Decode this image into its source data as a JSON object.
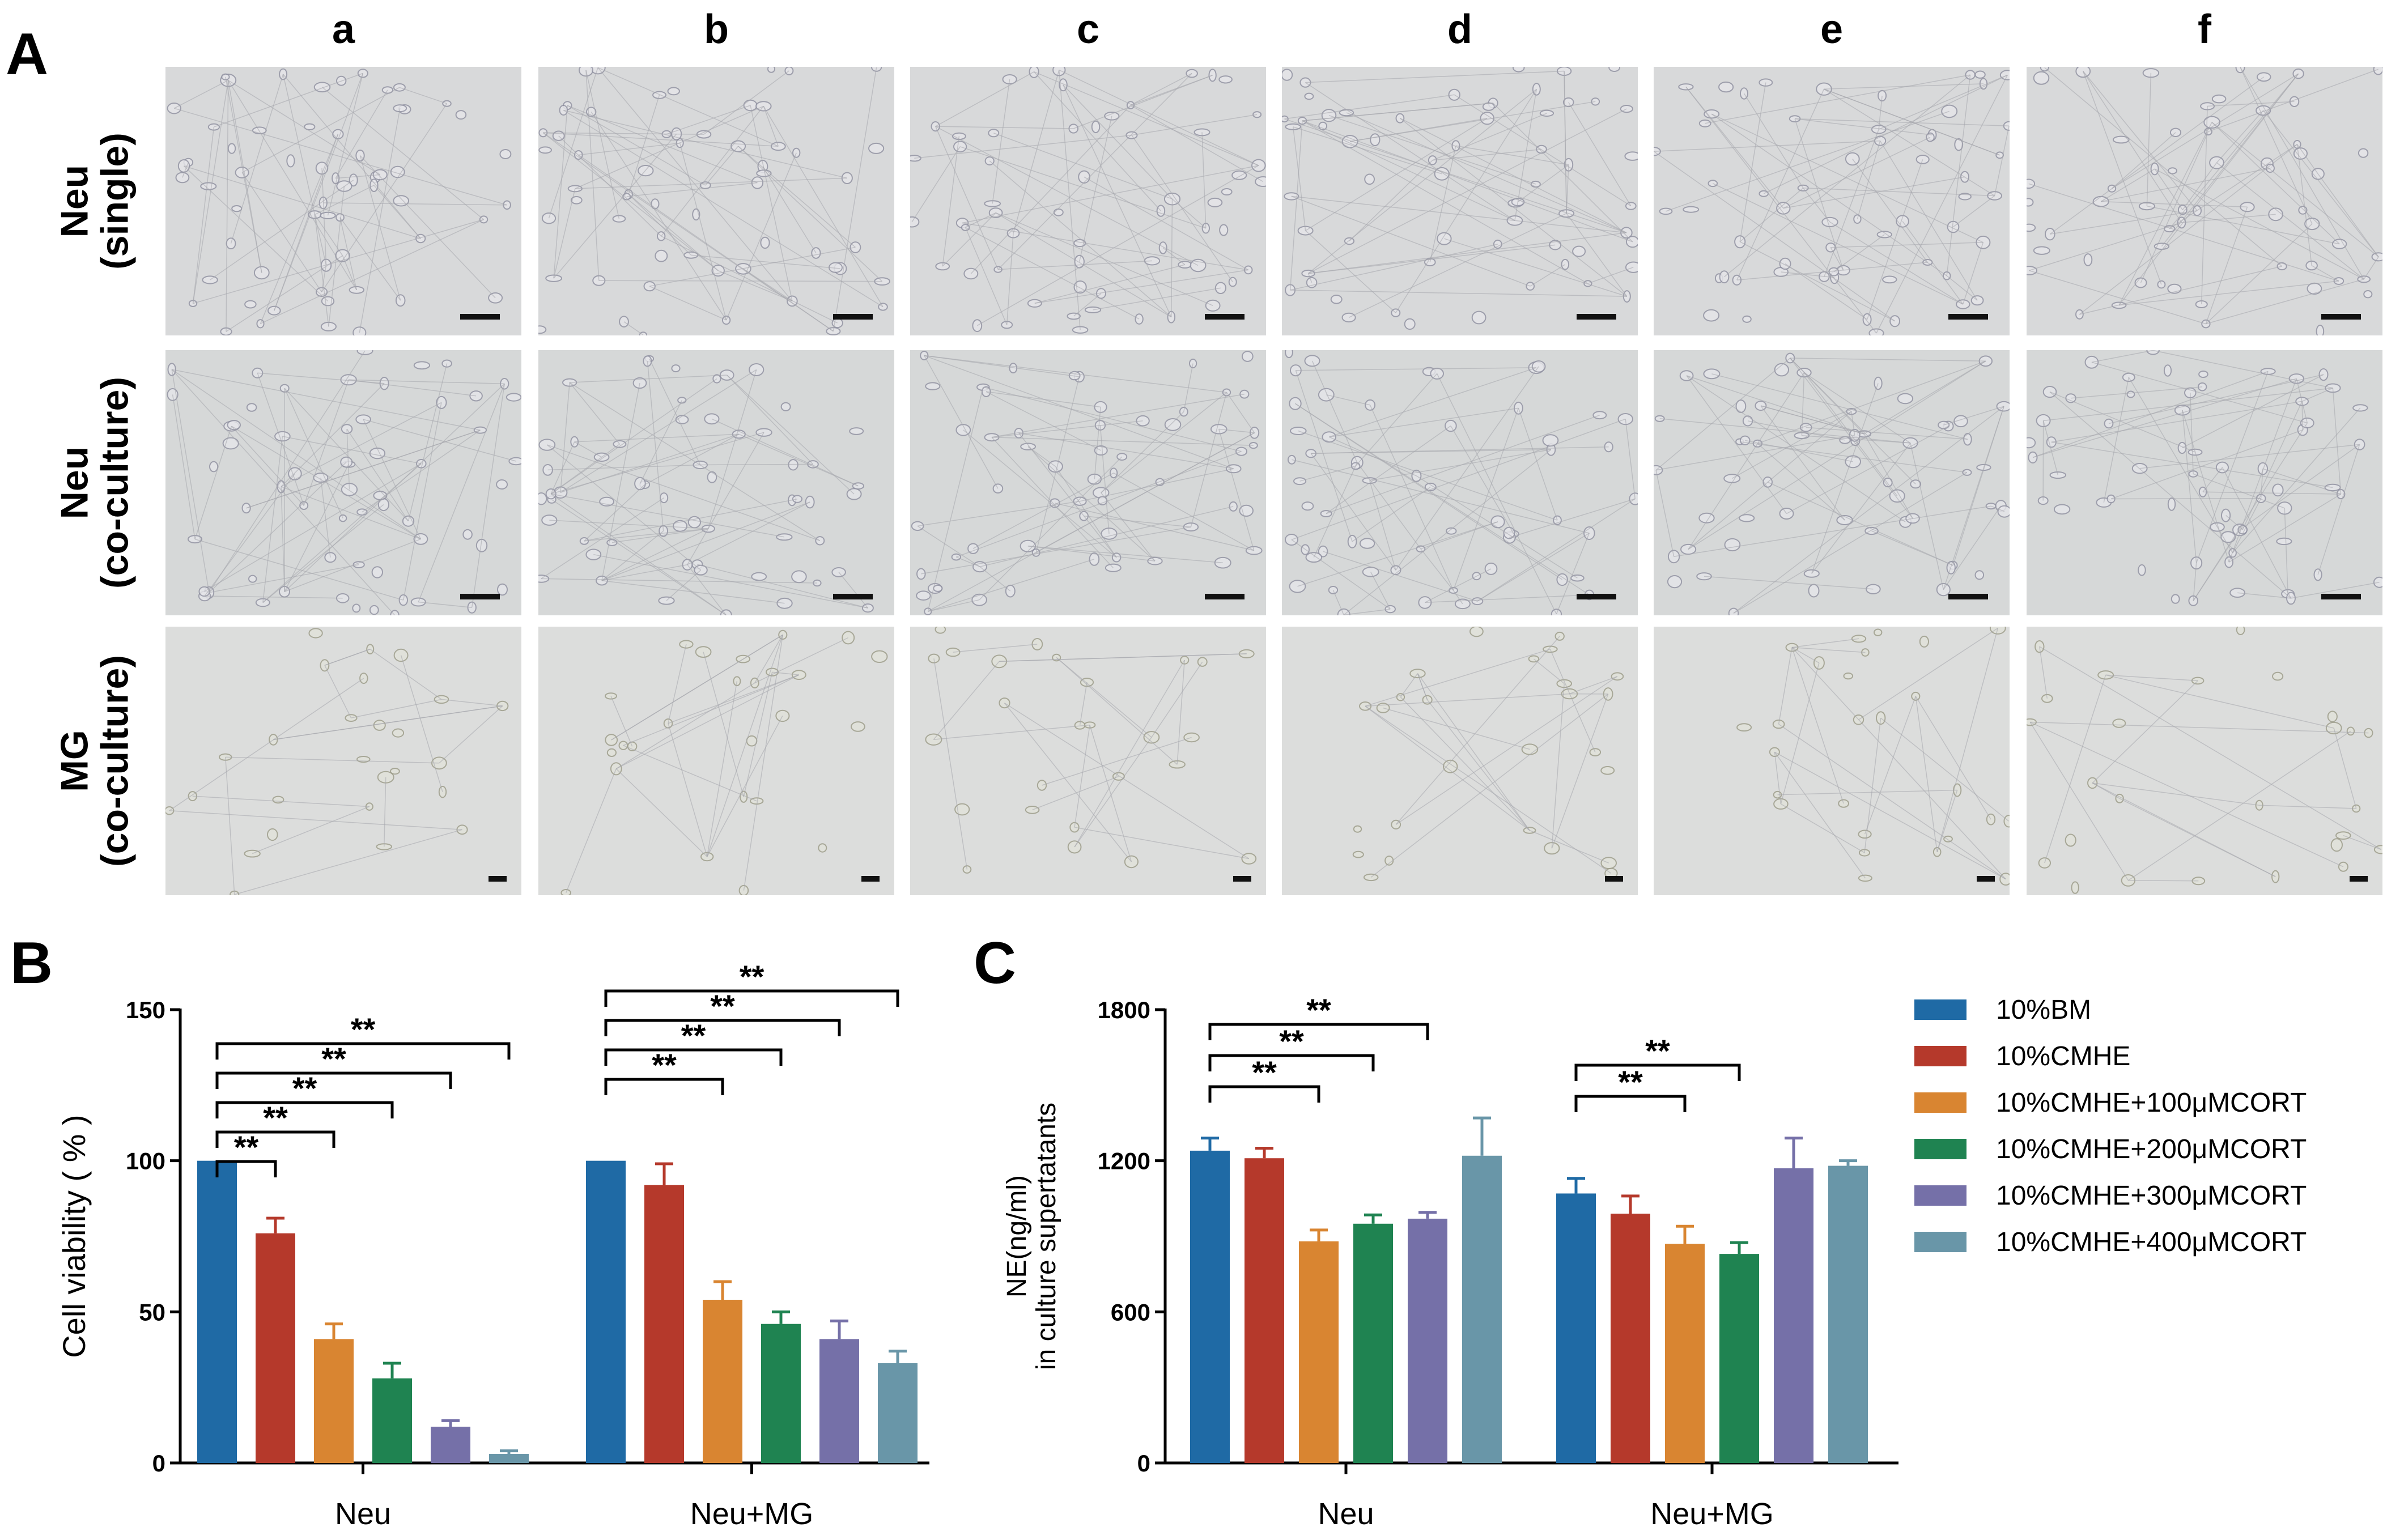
{
  "panel_a": {
    "letter": "A",
    "columns": [
      "a",
      "b",
      "c",
      "d",
      "e",
      "f"
    ],
    "rows": [
      {
        "line1": "Neu",
        "line2": "(single)"
      },
      {
        "line1": "Neu",
        "line2": "(co-culture)"
      },
      {
        "line1": "MG",
        "line2": "(co-culture)"
      }
    ]
  },
  "panel_b": {
    "letter": "B"
  },
  "panel_c": {
    "letter": "C"
  },
  "legend": {
    "items": [
      {
        "label": "10%BM",
        "color": "#1f6aa5"
      },
      {
        "label": "10%CMHE",
        "color": "#b5392b"
      },
      {
        "label": "10%CMHE+100μMCORT",
        "color": "#d98531"
      },
      {
        "label": "10%CMHE+200μMCORT",
        "color": "#1f8351"
      },
      {
        "label": "10%CMHE+300μMCORT",
        "color": "#7570a8"
      },
      {
        "label": "10%CMHE+400μMCORT",
        "color": "#6996a8"
      }
    ]
  },
  "chart_data": [
    {
      "type": "bar",
      "panel": "B",
      "ylabel": "Cell viability ( % )",
      "xlabel": "",
      "ylim": [
        0,
        150
      ],
      "yticks": [
        0,
        50,
        100,
        150
      ],
      "categories": [
        "Neu",
        "Neu+MG"
      ],
      "series": [
        {
          "name": "10%BM",
          "values": [
            100,
            100
          ],
          "errors": [
            0,
            0
          ]
        },
        {
          "name": "10%CMHE",
          "values": [
            76,
            92
          ],
          "errors": [
            5,
            7
          ]
        },
        {
          "name": "10%CMHE+100μMCORT",
          "values": [
            41,
            54
          ],
          "errors": [
            5,
            6
          ]
        },
        {
          "name": "10%CMHE+200μMCORT",
          "values": [
            28,
            46
          ],
          "errors": [
            5,
            4
          ]
        },
        {
          "name": "10%CMHE+300μMCORT",
          "values": [
            12,
            41
          ],
          "errors": [
            2,
            6
          ]
        },
        {
          "name": "10%CMHE+400μMCORT",
          "values": [
            3,
            33
          ],
          "errors": [
            1,
            4
          ]
        }
      ],
      "significance": [
        {
          "category": "Neu",
          "from": 0,
          "to": 1,
          "label": "**"
        },
        {
          "category": "Neu",
          "from": 0,
          "to": 2,
          "label": "**"
        },
        {
          "category": "Neu",
          "from": 0,
          "to": 3,
          "label": "**"
        },
        {
          "category": "Neu",
          "from": 0,
          "to": 4,
          "label": "**"
        },
        {
          "category": "Neu",
          "from": 0,
          "to": 5,
          "label": "**"
        },
        {
          "category": "Neu+MG",
          "from": 0,
          "to": 2,
          "label": "**"
        },
        {
          "category": "Neu+MG",
          "from": 0,
          "to": 3,
          "label": "**"
        },
        {
          "category": "Neu+MG",
          "from": 0,
          "to": 4,
          "label": "**"
        },
        {
          "category": "Neu+MG",
          "from": 0,
          "to": 5,
          "label": "**"
        }
      ]
    },
    {
      "type": "bar",
      "panel": "C",
      "ylabel": "NE(ng/ml)",
      "ylabel2": "in culture supertatants",
      "xlabel": "",
      "ylim": [
        0,
        1800
      ],
      "yticks": [
        0,
        600,
        1200,
        1800
      ],
      "categories": [
        "Neu",
        "Neu+MG"
      ],
      "series": [
        {
          "name": "10%BM",
          "values": [
            1240,
            1070
          ],
          "errors": [
            50,
            60
          ]
        },
        {
          "name": "10%CMHE",
          "values": [
            1210,
            990
          ],
          "errors": [
            40,
            70
          ]
        },
        {
          "name": "10%CMHE+100μMCORT",
          "values": [
            880,
            870
          ],
          "errors": [
            45,
            70
          ]
        },
        {
          "name": "10%CMHE+200μMCORT",
          "values": [
            950,
            830
          ],
          "errors": [
            35,
            45
          ]
        },
        {
          "name": "10%CMHE+300μMCORT",
          "values": [
            970,
            1170
          ],
          "errors": [
            25,
            120
          ]
        },
        {
          "name": "10%CMHE+400μMCORT",
          "values": [
            1220,
            1180
          ],
          "errors": [
            150,
            20
          ]
        }
      ],
      "significance": [
        {
          "category": "Neu",
          "from": 0,
          "to": 2,
          "label": "**"
        },
        {
          "category": "Neu",
          "from": 0,
          "to": 3,
          "label": "**"
        },
        {
          "category": "Neu",
          "from": 0,
          "to": 4,
          "label": "**"
        },
        {
          "category": "Neu+MG",
          "from": 0,
          "to": 2,
          "label": "**"
        },
        {
          "category": "Neu+MG",
          "from": 0,
          "to": 3,
          "label": "**"
        }
      ]
    }
  ]
}
